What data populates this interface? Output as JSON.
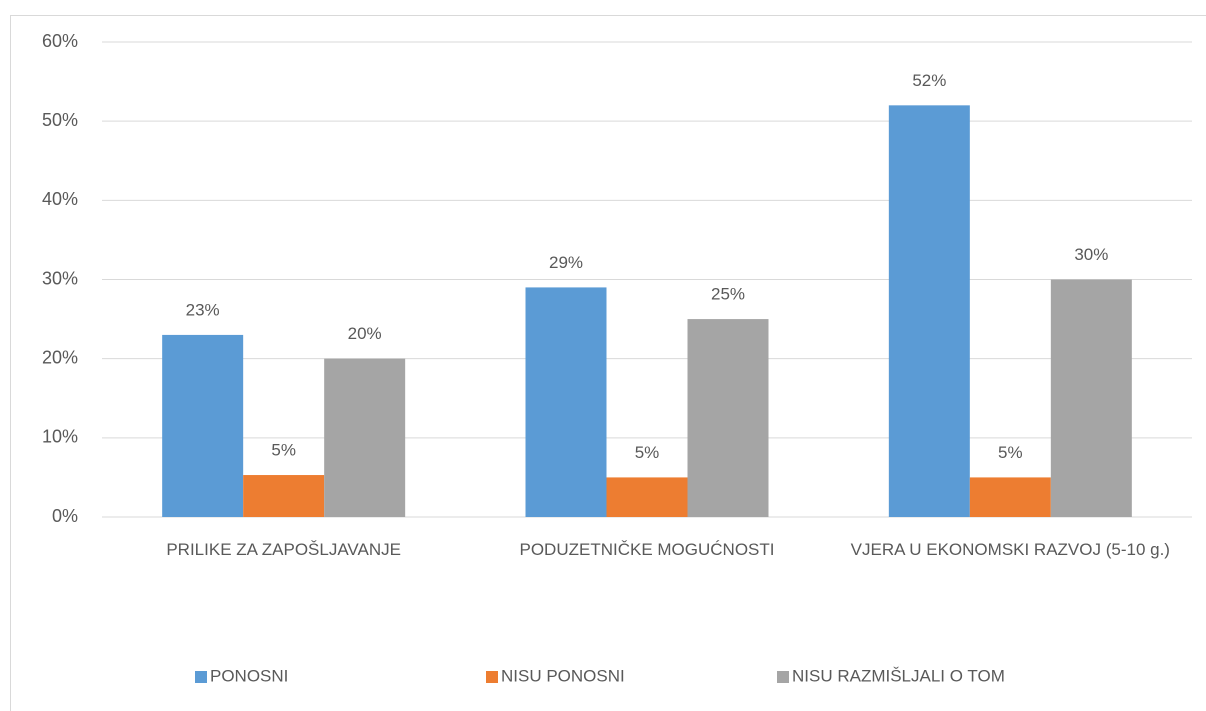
{
  "chart_data": {
    "type": "bar",
    "categories": [
      "PRILIKE ZA ZAPOŠLJAVANJE",
      "PODUZETNIČKE MOGUĆNOSTI",
      "VJERA U EKONOMSKI RAZVOJ (5-10 g.)"
    ],
    "series": [
      {
        "name": "PONOSNI",
        "color": "#5b9bd5",
        "values": [
          23,
          29,
          52
        ],
        "value_labels": [
          "23%",
          "29%",
          "52%"
        ]
      },
      {
        "name": "NISU PONOSNI",
        "color": "#ed7d31",
        "values": [
          5.3,
          5,
          5
        ],
        "value_labels": [
          "5%",
          "5%",
          "5%"
        ]
      },
      {
        "name": "NISU RAZMIŠLJALI O TOM",
        "color": "#a5a5a5",
        "values": [
          20,
          25,
          30
        ],
        "value_labels": [
          "20%",
          "25%",
          "30%"
        ]
      }
    ],
    "ylim": [
      0,
      60
    ],
    "yticks": [
      {
        "value": 0,
        "label": "0%"
      },
      {
        "value": 10,
        "label": "10%"
      },
      {
        "value": 20,
        "label": "20%"
      },
      {
        "value": 30,
        "label": "30%"
      },
      {
        "value": 40,
        "label": "40%"
      },
      {
        "value": 50,
        "label": "50%"
      },
      {
        "value": 60,
        "label": "60%"
      }
    ],
    "grid": true,
    "legend": "bottom"
  }
}
